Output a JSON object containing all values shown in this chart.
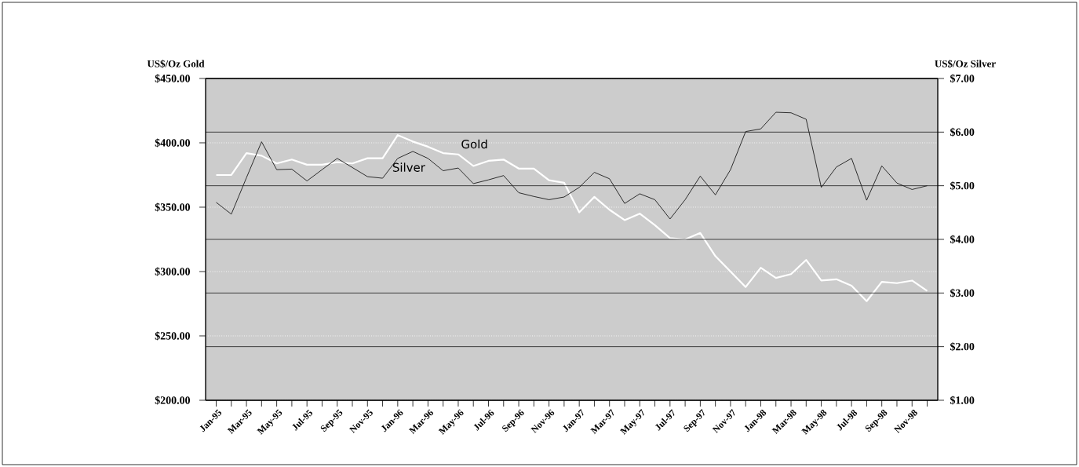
{
  "chart_data": {
    "type": "line",
    "ylabel": "US$/Oz Gold",
    "y2label": "US$/Oz Silver",
    "categories": [
      "Jan-95",
      null,
      "Mar-95",
      null,
      "May-95",
      null,
      "Jul-95",
      null,
      "Sep-95",
      null,
      "Nov-95",
      null,
      "Jan-96",
      null,
      "Mar-96",
      null,
      "May-96",
      null,
      "Jul-96",
      null,
      "Sep-96",
      null,
      "Nov-96",
      null,
      "Jan-97",
      null,
      "Mar-97",
      null,
      "May-97",
      null,
      "Jul-97",
      null,
      "Sep-97",
      null,
      "Nov-97",
      null,
      "Jan-98",
      null,
      "Mar-98",
      null,
      "May-98",
      null,
      "Jul-98",
      null,
      "Sep-98",
      null,
      "Nov-98",
      null
    ],
    "series": [
      {
        "name": "Gold",
        "color": "#ffffff",
        "values": [
          375,
          375,
          392,
          390,
          384,
          387,
          383,
          383,
          385,
          384,
          388,
          388,
          406,
          401,
          397,
          392,
          391,
          382,
          386,
          387,
          380,
          380,
          371,
          369,
          346,
          358,
          348,
          340,
          345,
          336,
          326,
          325,
          330,
          312,
          300,
          288,
          303,
          295,
          298,
          309,
          293,
          294,
          289,
          277,
          292,
          291,
          293,
          285
        ]
      },
      {
        "name": "Silver",
        "color": "#1a1a1a",
        "axis": "y2",
        "values": [
          4.69,
          4.47,
          5.15,
          5.82,
          5.3,
          5.31,
          5.09,
          5.3,
          5.51,
          5.34,
          5.17,
          5.14,
          5.51,
          5.64,
          5.51,
          5.28,
          5.33,
          5.04,
          5.11,
          5.19,
          4.87,
          4.8,
          4.74,
          4.79,
          4.97,
          5.25,
          5.13,
          4.67,
          4.85,
          4.74,
          4.38,
          4.74,
          5.18,
          4.83,
          5.3,
          6.01,
          6.06,
          6.37,
          6.36,
          6.24,
          4.97,
          5.35,
          5.51,
          4.73,
          5.37,
          5.05,
          4.93,
          5.0
        ]
      }
    ],
    "ylim": [
      200,
      450
    ],
    "yticks": [
      {
        "value": 200,
        "label": "$200.00"
      },
      {
        "value": 250,
        "label": "$250.00"
      },
      {
        "value": 300,
        "label": "$300.00"
      },
      {
        "value": 350,
        "label": "$350.00"
      },
      {
        "value": 400,
        "label": "$400.00"
      },
      {
        "value": 450,
        "label": "$450.00"
      }
    ],
    "y2lim": [
      1,
      7
    ],
    "y2ticks": [
      {
        "value": 1,
        "label": "$1.00"
      },
      {
        "value": 2,
        "label": "$2.00"
      },
      {
        "value": 3,
        "label": "$3.00"
      },
      {
        "value": 4,
        "label": "$4.00"
      },
      {
        "value": 5,
        "label": "$5.00"
      },
      {
        "value": 6,
        "label": "$6.00"
      },
      {
        "value": 7,
        "label": "$7.00"
      }
    ],
    "grid": true
  }
}
